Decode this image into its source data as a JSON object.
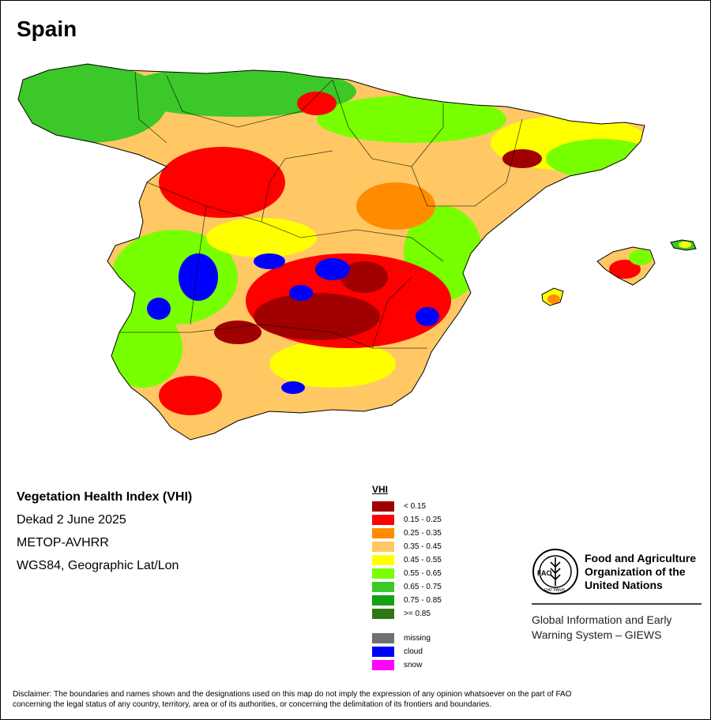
{
  "title": "Spain",
  "info": {
    "heading": "Vegetation Health Index (VHI)",
    "period": "Dekad 2 June 2025",
    "sensor": "METOP-AVHRR",
    "projection": "WGS84, Geographic Lat/Lon"
  },
  "legend": {
    "title": "VHI",
    "classes": [
      {
        "label": "< 0.15",
        "color": "#a00000"
      },
      {
        "label": "0.15 - 0.25",
        "color": "#ff0000"
      },
      {
        "label": "0.25 - 0.35",
        "color": "#ff8c00"
      },
      {
        "label": "0.35 - 0.45",
        "color": "#ffc864"
      },
      {
        "label": "0.45 - 0.55",
        "color": "#ffff00"
      },
      {
        "label": "0.55 - 0.65",
        "color": "#78ff00"
      },
      {
        "label": "0.65 - 0.75",
        "color": "#3cc828"
      },
      {
        "label": "0.75 - 0.85",
        "color": "#14a014"
      },
      {
        "label": ">= 0.85",
        "color": "#2d7814"
      }
    ],
    "special": [
      {
        "label": "missing",
        "color": "#707070"
      },
      {
        "label": "cloud",
        "color": "#0000ff"
      },
      {
        "label": "snow",
        "color": "#ff00ff"
      }
    ]
  },
  "fao": {
    "name_line1": "Food and Agriculture",
    "name_line2": "Organization of the",
    "name_line3": "United Nations",
    "logo_text": "FAO",
    "logo_motto": "FIAT PANIS",
    "giews_line1": "Global Information and Early",
    "giews_line2": "Warning System – GIEWS"
  },
  "disclaimer_line1": "Disclaimer: The boundaries and names shown and the designations used on this map do not imply the expression of any opinion whatsoever on the part of FAO",
  "disclaimer_line2": "concerning the legal status of any country, territory, area or of its authorities, or concerning the delimitation of its frontiers and boundaries."
}
